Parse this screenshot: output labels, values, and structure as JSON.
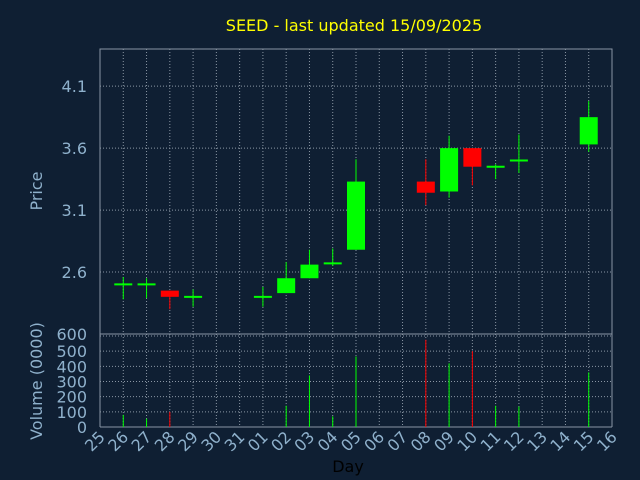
{
  "chart_data": {
    "type": "candlestick",
    "title": "SEED - last updated 15/09/2025",
    "xlabel": "Day",
    "price_panel": {
      "ylabel": "Price",
      "ylim": [
        2.1,
        4.4
      ],
      "yticks": [
        2.6,
        3.1,
        3.6,
        4.1
      ],
      "ytick_labels": [
        "2.6",
        "3.1",
        "3.6",
        "4.1"
      ]
    },
    "volume_panel": {
      "ylabel": "Volume (0000)",
      "ylim": [
        0,
        600
      ],
      "yticks": [
        0,
        100,
        200,
        300,
        400,
        500,
        600
      ],
      "ytick_labels": [
        "0",
        "100",
        "200",
        "300",
        "400",
        "500",
        "600"
      ]
    },
    "x_ticks": [
      "25",
      "26",
      "27",
      "28",
      "29",
      "30",
      "31",
      "01",
      "02",
      "03",
      "04",
      "05",
      "06",
      "07",
      "08",
      "09",
      "10",
      "11",
      "12",
      "13",
      "14",
      "15",
      "16"
    ],
    "candles": [
      {
        "day": "26",
        "open": 2.5,
        "high": 2.56,
        "low": 2.38,
        "close": 2.5,
        "volume": 80
      },
      {
        "day": "27",
        "open": 2.5,
        "high": 2.55,
        "low": 2.39,
        "close": 2.5,
        "volume": 55
      },
      {
        "day": "28",
        "open": 2.45,
        "high": 2.45,
        "low": 2.3,
        "close": 2.4,
        "volume": 100
      },
      {
        "day": "29",
        "open": 2.4,
        "high": 2.46,
        "low": 2.32,
        "close": 2.4,
        "volume": 0
      },
      {
        "day": "01",
        "open": 2.4,
        "high": 2.48,
        "low": 2.32,
        "close": 2.4,
        "volume": 0
      },
      {
        "day": "02",
        "open": 2.43,
        "high": 2.68,
        "low": 2.43,
        "close": 2.55,
        "volume": 140
      },
      {
        "day": "03",
        "open": 2.55,
        "high": 2.78,
        "low": 2.55,
        "close": 2.66,
        "volume": 340
      },
      {
        "day": "04",
        "open": 2.67,
        "high": 2.79,
        "low": 2.65,
        "close": 2.67,
        "volume": 70
      },
      {
        "day": "05",
        "open": 2.78,
        "high": 3.51,
        "low": 2.78,
        "close": 3.33,
        "volume": 465
      },
      {
        "day": "08",
        "open": 3.33,
        "high": 3.51,
        "low": 3.14,
        "close": 3.24,
        "volume": 575
      },
      {
        "day": "09",
        "open": 3.25,
        "high": 3.7,
        "low": 3.2,
        "close": 3.6,
        "volume": 420
      },
      {
        "day": "10",
        "open": 3.6,
        "high": 3.6,
        "low": 3.3,
        "close": 3.45,
        "volume": 500
      },
      {
        "day": "11",
        "open": 3.45,
        "high": 3.47,
        "low": 3.35,
        "close": 3.45,
        "volume": 140
      },
      {
        "day": "12",
        "open": 3.5,
        "high": 3.71,
        "low": 3.4,
        "close": 3.5,
        "volume": 135
      },
      {
        "day": "15",
        "open": 3.63,
        "high": 3.98,
        "low": 3.57,
        "close": 3.85,
        "volume": 360
      }
    ],
    "colors": {
      "background": "#0f1f33",
      "up": "#00ff00",
      "down": "#ff0000",
      "title": "#ffff00",
      "axis_text": "#8fb1cc",
      "grid": "#8a96a4"
    },
    "grid": true,
    "legend": "none"
  }
}
